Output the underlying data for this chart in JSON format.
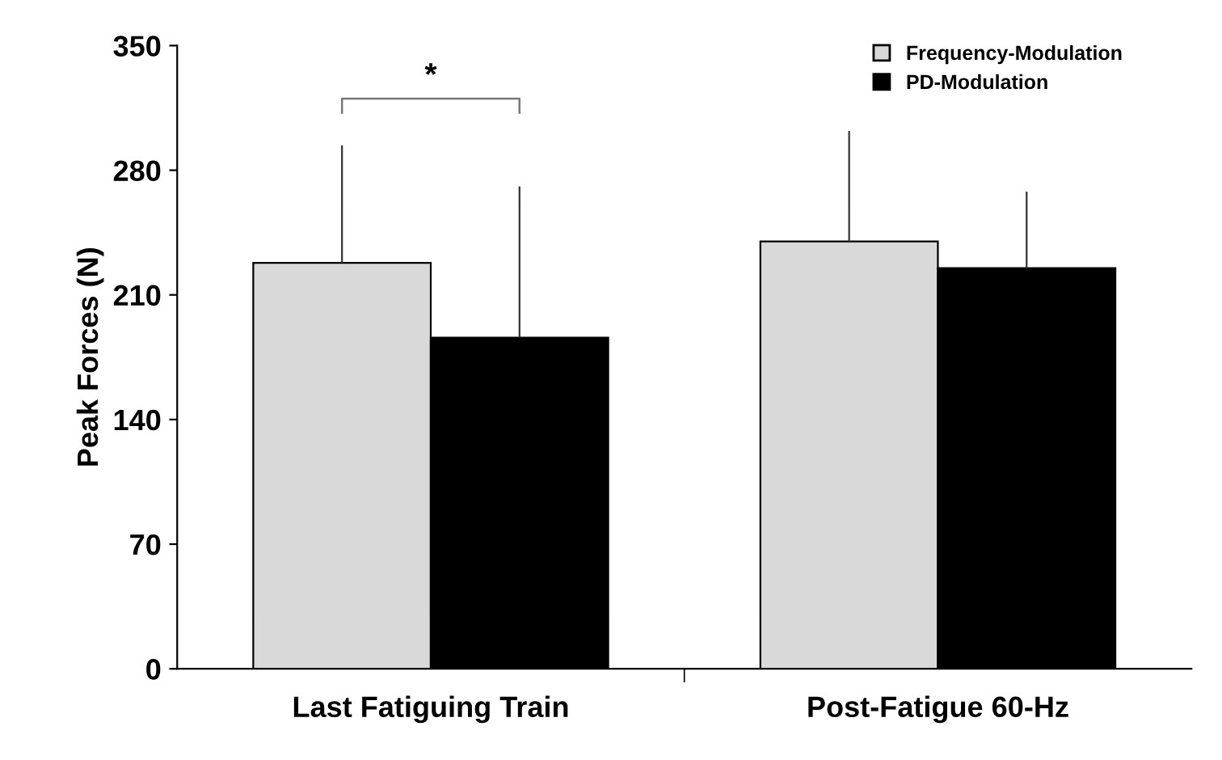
{
  "chart_data": {
    "type": "bar",
    "ylabel": "Peak Forces (N)",
    "categories": [
      "Last Fatiguing Train",
      "Post-Fatigue 60-Hz"
    ],
    "series": [
      {
        "name": "Frequency-Modulation",
        "color": "#d9d9d9",
        "values": [
          228,
          240
        ],
        "errors": [
          [
            228,
            294
          ],
          [
            240,
            302
          ]
        ]
      },
      {
        "name": "PD-Modulation",
        "color": "#000000",
        "values": [
          186,
          225
        ],
        "errors": [
          [
            186,
            271
          ],
          [
            225,
            268
          ]
        ]
      }
    ],
    "ylim": [
      0,
      350
    ],
    "yticks": [
      0,
      70,
      140,
      210,
      280,
      350
    ],
    "grid": false,
    "legend": "top right",
    "annotations": [
      "*"
    ]
  }
}
